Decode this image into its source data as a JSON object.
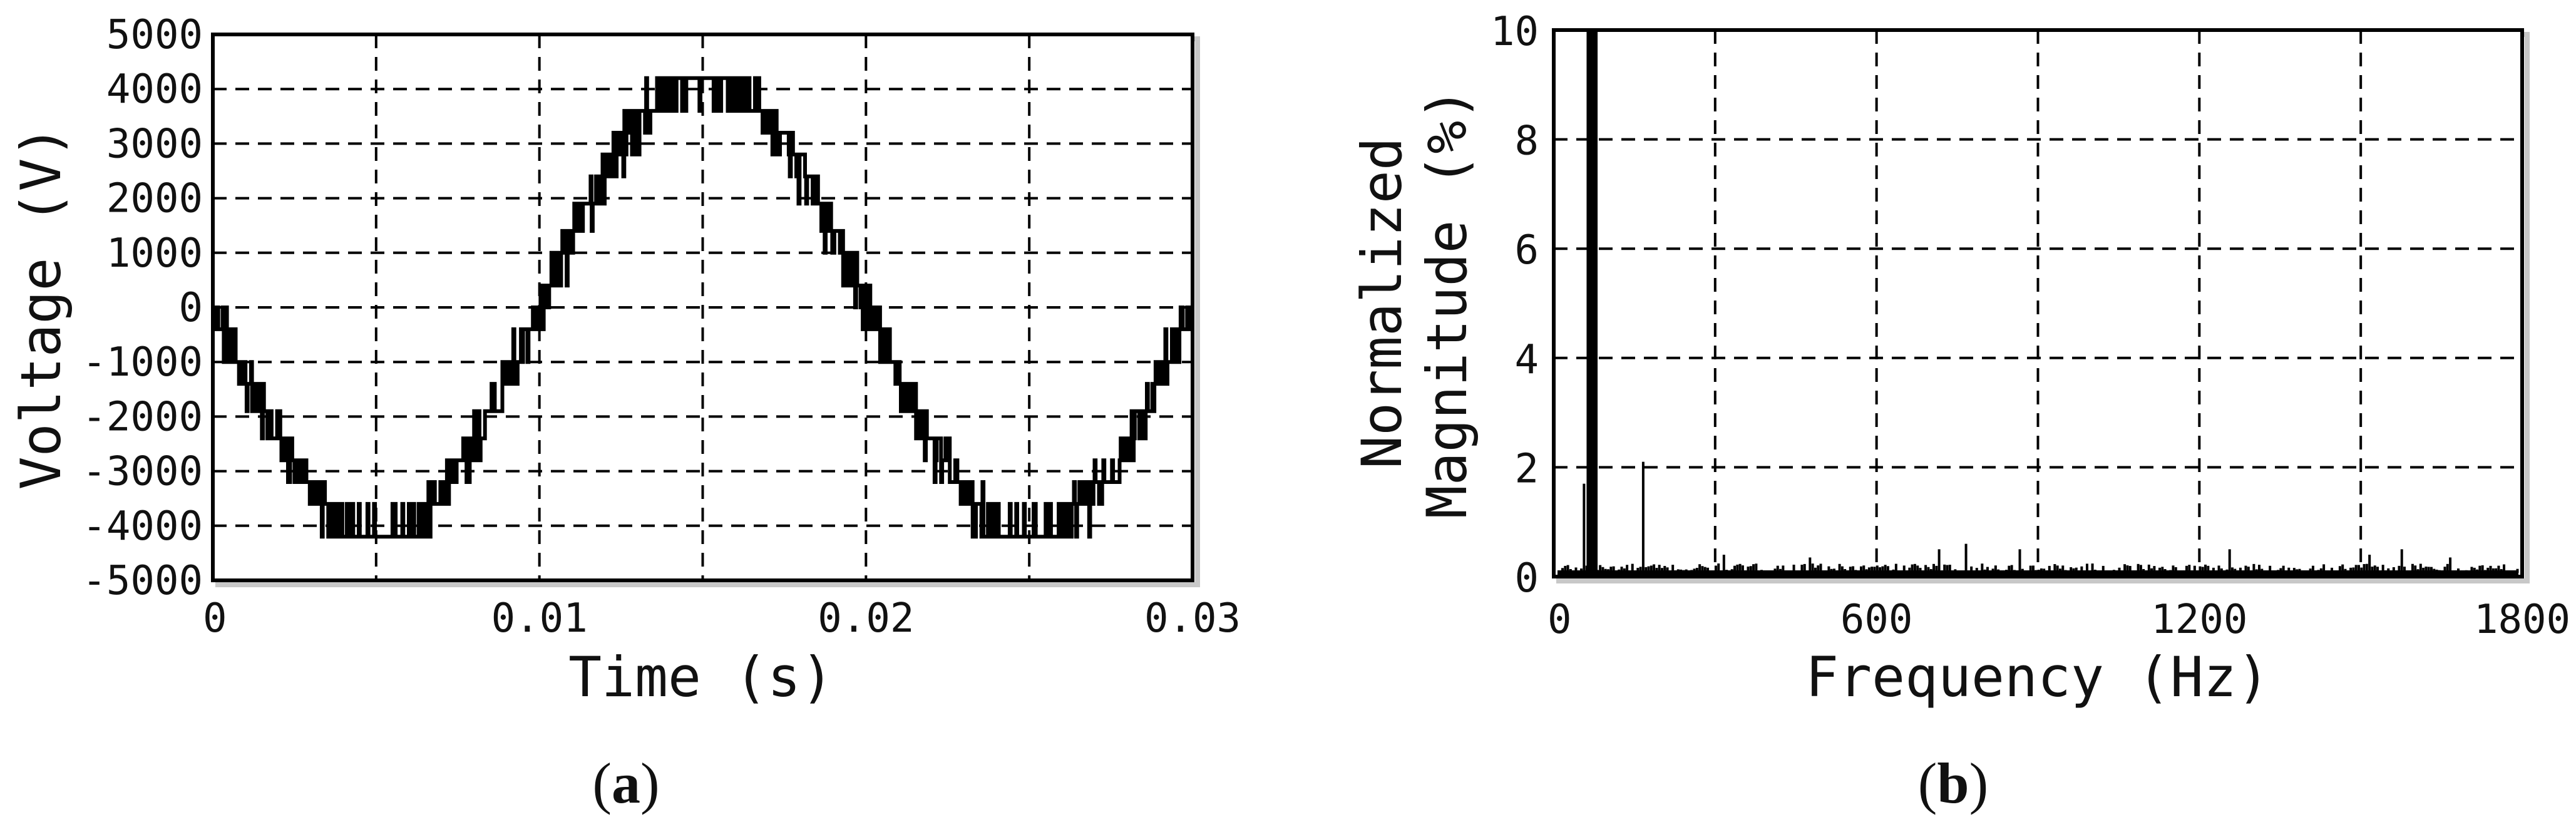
{
  "chart_data": [
    {
      "id": "a",
      "type": "line",
      "caption": {
        "open": "(",
        "letter": "a",
        "close": ")"
      },
      "xlabel": "Time (s)",
      "ylabel": "Voltage (V)",
      "xlim": [
        0,
        0.03
      ],
      "ylim": [
        -5000,
        5000
      ],
      "xticks": [
        0,
        0.01,
        0.02,
        0.03
      ],
      "xtick_labels": [
        "0",
        "0.01",
        "0.02",
        "0.03"
      ],
      "yticks": [
        -5000,
        -4000,
        -3000,
        -2000,
        -1000,
        0,
        1000,
        2000,
        3000,
        4000,
        5000
      ],
      "ytick_labels": [
        "-5000",
        "-4000",
        "-3000",
        "-2000",
        "-1000",
        "0",
        "1000",
        "2000",
        "3000",
        "4000",
        "5000"
      ],
      "grid": true,
      "waveform": {
        "description": "multilevel staircase voltage",
        "frequency_hz": 50,
        "peak_v": 4200,
        "phase_deg": 180
      },
      "series": [
        {
          "x": [
            0,
            0.00125,
            0.0025,
            0.00375,
            0.005,
            0.00625,
            0.0075,
            0.00875,
            0.01,
            0.01125,
            0.0125,
            0.01375,
            0.015,
            0.01625,
            0.0175,
            0.01875,
            0.02,
            0.02125,
            0.0225,
            0.02375,
            0.025,
            0.02625,
            0.0275,
            0.02875,
            0.03
          ],
          "values": [
            0,
            -1600,
            -3000,
            -3900,
            -4200,
            -3900,
            -3000,
            -1600,
            0,
            1600,
            3000,
            3900,
            4200,
            3900,
            3000,
            1600,
            0,
            -1600,
            -3000,
            -3900,
            -4200,
            -3900,
            -3000,
            -1600,
            0
          ]
        }
      ]
    },
    {
      "id": "b",
      "type": "bar",
      "caption": {
        "open": "(",
        "letter": "b",
        "close": ")"
      },
      "xlabel": "Frequency (Hz)",
      "ylabel_lines": [
        "Normalized",
        "Magnitude (%)"
      ],
      "xlim": [
        0,
        1800
      ],
      "ylim": [
        0,
        10
      ],
      "xticks": [
        0,
        600,
        1200,
        1800
      ],
      "xtick_labels": [
        "0",
        "600",
        "1200",
        "1800"
      ],
      "yticks": [
        0,
        2,
        4,
        6,
        8,
        10
      ],
      "ytick_labels": [
        "0",
        "2",
        "4",
        "6",
        "8",
        "10"
      ],
      "grid": true,
      "peaks": [
        {
          "frequency_hz": 40,
          "magnitude_pct": 1.7
        },
        {
          "frequency_hz": 50,
          "magnitude_pct": 10
        },
        {
          "frequency_hz": 60,
          "magnitude_pct": 10
        },
        {
          "frequency_hz": 150,
          "magnitude_pct": 2.1
        },
        {
          "frequency_hz": 300,
          "magnitude_pct": 0.4
        },
        {
          "frequency_hz": 460,
          "magnitude_pct": 0.35
        },
        {
          "frequency_hz": 700,
          "magnitude_pct": 0.5
        },
        {
          "frequency_hz": 750,
          "magnitude_pct": 0.6
        },
        {
          "frequency_hz": 850,
          "magnitude_pct": 0.5
        },
        {
          "frequency_hz": 1240,
          "magnitude_pct": 0.5
        },
        {
          "frequency_hz": 1500,
          "magnitude_pct": 0.4
        },
        {
          "frequency_hz": 1560,
          "magnitude_pct": 0.5
        },
        {
          "frequency_hz": 1650,
          "magnitude_pct": 0.35
        }
      ],
      "noise_floor_pct": 0.15,
      "bin_width_hz": 10
    }
  ]
}
